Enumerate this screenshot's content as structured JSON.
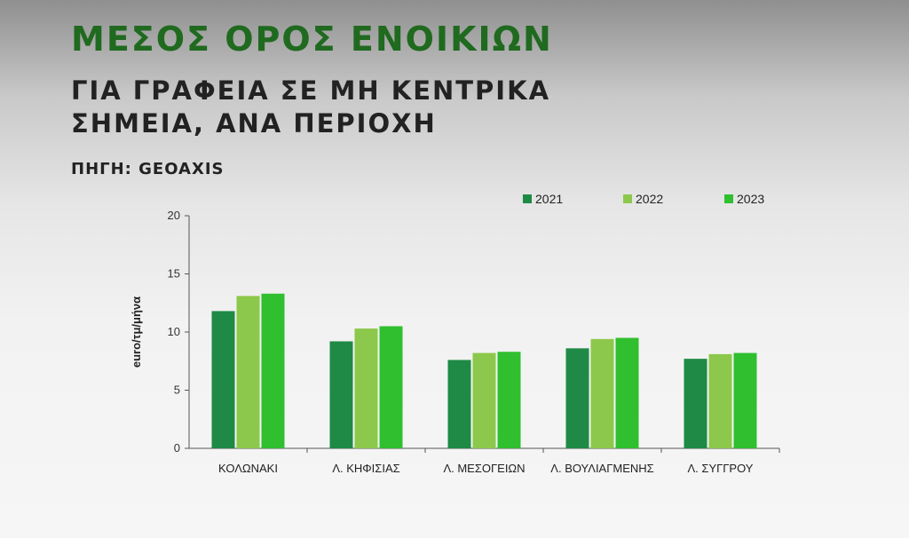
{
  "header": {
    "title": "ΜΕΣΟΣ ΟΡΟΣ ΕΝΟΙΚΙΩΝ",
    "subtitle": "ΓΙΑ ΓΡΑΦΕΙΑ ΣΕ ΜΗ ΚΕΝΤΡΙΚΑ ΣΗΜΕΙΑ, ΑΝΑ ΠΕΡΙΟΧΗ",
    "source": "ΠΗΓΗ: GEOAXIS"
  },
  "chart_data": {
    "type": "bar",
    "title": "",
    "xlabel": "",
    "ylabel": "euro/τμ/μήνα",
    "ylim": [
      0,
      20
    ],
    "yticks": [
      0,
      5,
      10,
      15,
      20
    ],
    "grid": false,
    "legend_position": "top-right",
    "categories": [
      "ΚΟΛΩΝΑΚΙ",
      "Λ. ΚΗΦΙΣΙΑΣ",
      "Λ. ΜΕΣΟΓΕΙΩΝ",
      "Λ. ΒΟΥΛΙΑΓΜΕΝΗΣ",
      "Λ. ΣΥΓΓΡΟΥ"
    ],
    "series": [
      {
        "name": "2021",
        "color": "#1e8a45",
        "values": [
          11.8,
          9.2,
          7.6,
          8.6,
          7.7
        ]
      },
      {
        "name": "2022",
        "color": "#8cc84b",
        "values": [
          13.1,
          10.3,
          8.2,
          9.4,
          8.1
        ]
      },
      {
        "name": "2023",
        "color": "#2fbf2f",
        "values": [
          13.3,
          10.5,
          8.3,
          9.5,
          8.2
        ]
      }
    ]
  }
}
